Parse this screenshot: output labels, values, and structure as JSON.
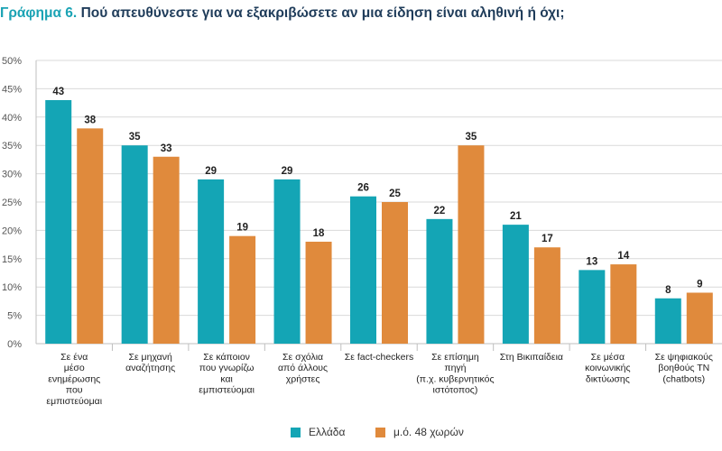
{
  "title": {
    "prefix": "Γράφημα 6.",
    "text": "Πού απευθύνεστε για να εξακριβώσετε αν μια είδηση είναι αληθινή ή όχι;"
  },
  "colors": {
    "greece": "#14a5b5",
    "avg": "#e08a3c",
    "grid": "#d9d9d9",
    "axis": "#bfbfbf"
  },
  "chart_data": {
    "type": "bar",
    "title": "",
    "xlabel": "",
    "ylabel": "",
    "ylim": [
      0,
      50
    ],
    "yticks": [
      "0%",
      "5%",
      "10%",
      "15%",
      "20%",
      "25%",
      "30%",
      "35%",
      "40%",
      "45%",
      "50%"
    ],
    "grid": true,
    "legend_position": "bottom",
    "categories": [
      [
        "Σε ένα",
        "μέσο",
        "ενημέρωσης",
        "που",
        "εμπιστεύομαι"
      ],
      [
        "Σε μηχανή",
        "αναζήτησης"
      ],
      [
        "Σε κάποιον",
        "που γνωρίζω",
        "και",
        "εμπιστεύομαι"
      ],
      [
        "Σε σχόλια",
        "από άλλους",
        "χρήστες"
      ],
      [
        "Σε fact-checkers"
      ],
      [
        "Σε επίσημη",
        "πηγή",
        "(π.χ. κυβερνητικός",
        "ιστότοπος)"
      ],
      [
        "Στη Βικιπαίδεια"
      ],
      [
        "Σε μέσα",
        "κοινωνικής",
        "δικτύωσης"
      ],
      [
        "Σε ψηφιακούς",
        "βοηθούς ΤΝ",
        "(chatbots)"
      ]
    ],
    "series": [
      {
        "name": "Ελλάδα",
        "values": [
          43,
          35,
          29,
          29,
          26,
          22,
          21,
          13,
          8
        ]
      },
      {
        "name": "μ.ό. 48 χωρών",
        "values": [
          38,
          33,
          19,
          18,
          25,
          35,
          17,
          14,
          9
        ]
      }
    ]
  }
}
